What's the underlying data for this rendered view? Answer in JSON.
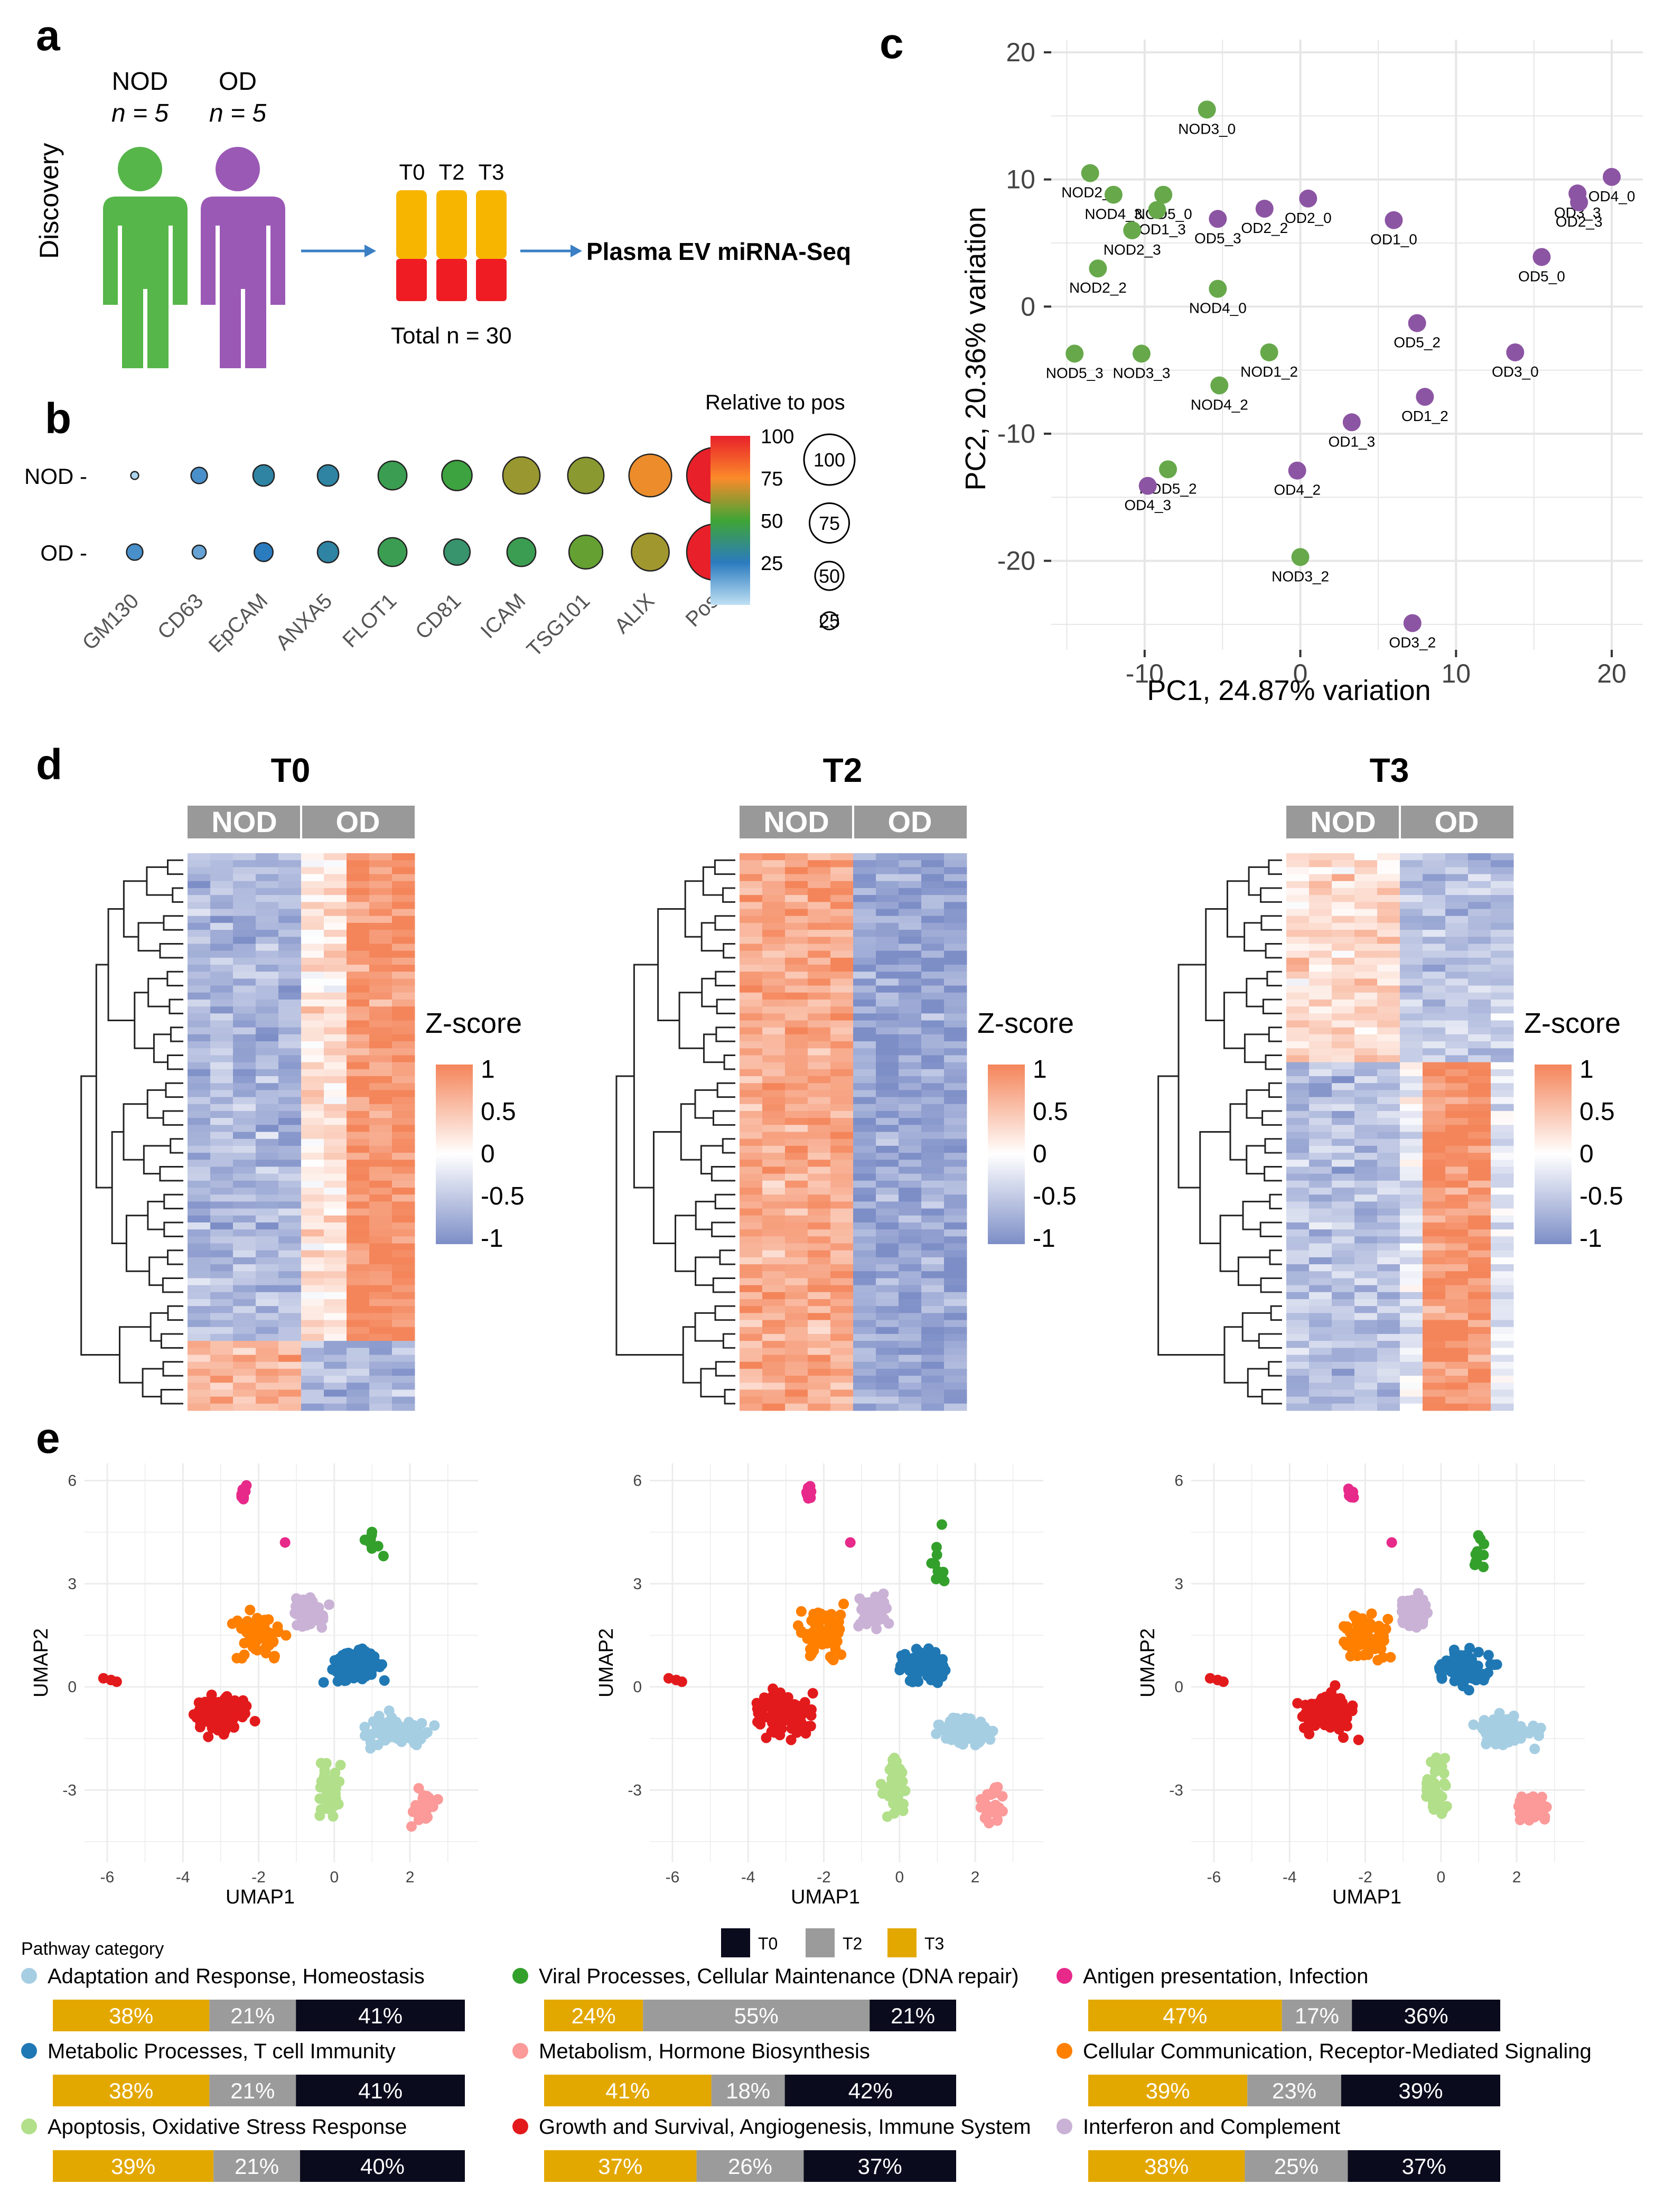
{
  "panel_labels": {
    "a": "a",
    "b": "b",
    "c": "c",
    "d": "d",
    "e": "e"
  },
  "panel_a": {
    "group_nod": "NOD",
    "n_nod": "n = 5",
    "group_od": "OD",
    "n_od": "n = 5",
    "side_label": "Discovery",
    "timepoints": [
      "T0",
      "T2",
      "T3"
    ],
    "total": "Total n = 30",
    "output": "Plasma EV miRNA-Seq",
    "colors": {
      "nod": "#56b649",
      "od": "#9b59b6",
      "tube_top": "#f7b500",
      "tube_bottom": "#ef1c24",
      "arrow": "#3a7fc4"
    }
  },
  "chart_data": [
    {
      "id": "panel_b",
      "type": "scatter",
      "title": "Relative to pos",
      "rows": [
        "NOD",
        "OD"
      ],
      "categories": [
        "GM130",
        "CD63",
        "EpCAM",
        "ANXA5",
        "FLOT1",
        "CD81",
        "ICAM",
        "TSG101",
        "ALIX",
        "Pos"
      ],
      "values": {
        "NOD": [
          3,
          20,
          30,
          30,
          45,
          48,
          62,
          60,
          73,
          100
        ],
        "OD": [
          20,
          15,
          25,
          30,
          45,
          40,
          45,
          55,
          63,
          100
        ]
      },
      "color_scale": {
        "min": 0,
        "max": 100,
        "ticks": [
          100,
          75,
          50,
          25
        ]
      },
      "size_legend": [
        100,
        75,
        50,
        25
      ]
    },
    {
      "id": "panel_c",
      "type": "scatter",
      "xlabel": "PC1, 24.87% variation",
      "ylabel": "PC2, 20.36% variation",
      "xlim": [
        -16,
        22
      ],
      "ylim": [
        -27,
        21
      ],
      "xticks": [
        -10,
        0,
        10,
        20
      ],
      "yticks": [
        20,
        10,
        0,
        -10,
        -20
      ],
      "x_tick_labels": [
        "-10",
        "0",
        "10",
        "20"
      ],
      "y_tick_labels": [
        "20",
        "10",
        "0",
        "-10",
        "-20"
      ],
      "series": [
        {
          "name": "NOD",
          "color": "#67a84b",
          "points": [
            {
              "label": "NOD3_0",
              "x": -6,
              "y": 15.5
            },
            {
              "label": "NOD2_0",
              "x": -13.5,
              "y": 10.5
            },
            {
              "label": "NOD4_3",
              "x": -12,
              "y": 8.8
            },
            {
              "label": "NOD5_0",
              "x": -8.8,
              "y": 8.8
            },
            {
              "label": "NOD1_3",
              "x": -9.2,
              "y": 7.6
            },
            {
              "label": "NOD2_3",
              "x": -10.8,
              "y": 6
            },
            {
              "label": "NOD2_2",
              "x": -13,
              "y": 3
            },
            {
              "label": "NOD4_0",
              "x": -5.3,
              "y": 1.4
            },
            {
              "label": "NOD5_3",
              "x": -14.5,
              "y": -3.7
            },
            {
              "label": "NOD3_3",
              "x": -10.2,
              "y": -3.7
            },
            {
              "label": "NOD1_2",
              "x": -2,
              "y": -3.6
            },
            {
              "label": "NOD4_2",
              "x": -5.2,
              "y": -6.2
            },
            {
              "label": "NOD5_2",
              "x": -8.5,
              "y": -12.8
            },
            {
              "label": "NOD3_2",
              "x": 0,
              "y": -19.7
            }
          ]
        },
        {
          "name": "OD",
          "color": "#8c55a3",
          "points": [
            {
              "label": "OD4_0",
              "x": 20,
              "y": 10.2
            },
            {
              "label": "OD3_3",
              "x": 17.8,
              "y": 8.9
            },
            {
              "label": "OD2_3",
              "x": 17.9,
              "y": 8.2
            },
            {
              "label": "OD2_0",
              "x": 0.5,
              "y": 8.5
            },
            {
              "label": "OD2_2",
              "x": -2.3,
              "y": 7.7
            },
            {
              "label": "OD5_3",
              "x": -5.3,
              "y": 6.9
            },
            {
              "label": "OD1_0",
              "x": 6,
              "y": 6.8
            },
            {
              "label": "OD5_0",
              "x": 15.5,
              "y": 3.9
            },
            {
              "label": "OD5_2",
              "x": 7.5,
              "y": -1.3
            },
            {
              "label": "OD3_0",
              "x": 13.8,
              "y": -3.6
            },
            {
              "label": "OD1_2",
              "x": 8,
              "y": -7.1
            },
            {
              "label": "OD1_3",
              "x": 3.3,
              "y": -9.1
            },
            {
              "label": "OD4_2",
              "x": -0.2,
              "y": -12.9
            },
            {
              "label": "OD4_3",
              "x": -9.8,
              "y": -14.1
            },
            {
              "label": "OD3_2",
              "x": 7.2,
              "y": -24.9
            }
          ]
        }
      ]
    },
    {
      "id": "panel_d",
      "type": "heatmap",
      "titles": [
        "T0",
        "T2",
        "T3"
      ],
      "column_groups": [
        "NOD",
        "OD"
      ],
      "legend_title": "Z-score",
      "legend_ticks": [
        "1",
        "0.5",
        "0",
        "-0.5",
        "-1"
      ]
    },
    {
      "id": "panel_e",
      "type": "scatter",
      "xlabel": "UMAP1",
      "ylabel": "UMAP2",
      "xlim": [
        -6.6,
        3.8
      ],
      "ylim": [
        -5.1,
        6.5
      ],
      "xticks": [
        -6,
        -4,
        -2,
        0,
        2
      ],
      "yticks": [
        6,
        3,
        0,
        -3
      ],
      "x_tick_labels": [
        "-6",
        "-4",
        "-2",
        "0",
        "2"
      ],
      "y_tick_labels": [
        "6",
        "3",
        "0",
        "-3"
      ],
      "clusters": [
        {
          "name": "Adaptation and Response, Homeostasis",
          "color": "#a6cee3",
          "center": [
            1.7,
            -1.3
          ],
          "spread": [
            1.0,
            0.55
          ],
          "n": 90
        },
        {
          "name": "Metabolic Processes, T cell Immunity",
          "color": "#1f78b4",
          "center": [
            0.6,
            0.6
          ],
          "spread": [
            0.9,
            0.65
          ],
          "n": 80
        },
        {
          "name": "Apoptosis, Oxidative Stress Response",
          "color": "#b2df8a",
          "center": [
            -0.1,
            -2.9
          ],
          "spread": [
            0.45,
            1.2
          ],
          "n": 40
        },
        {
          "name": "Viral Processes, Cellular Maintenance (DNA repair)",
          "color": "#33a02c",
          "center": [
            1.0,
            4.0
          ],
          "spread": [
            0.35,
            1.0
          ],
          "n": 10
        },
        {
          "name": "Metabolism, Hormone Biosynthesis",
          "color": "#fb9a99",
          "center": [
            2.4,
            -3.5
          ],
          "spread": [
            0.5,
            0.7
          ],
          "n": 35
        },
        {
          "name": "Growth and Survival, Angiogenesis, Immune System",
          "color": "#e31a1c",
          "center": [
            -3.0,
            -0.8
          ],
          "spread": [
            0.95,
            0.8
          ],
          "n": 110
        },
        {
          "name": "Antigen presentation, Infection",
          "color": "#e7298a",
          "center": [
            -2.4,
            5.6
          ],
          "spread": [
            0.12,
            0.35
          ],
          "n": 10
        },
        {
          "name": "Cellular Communication, Receptor-Mediated Signaling",
          "color": "#ff7f00",
          "center": [
            -2.0,
            1.5
          ],
          "spread": [
            0.8,
            0.9
          ],
          "n": 75
        },
        {
          "name": "Interferon and Complement",
          "color": "#cab2d6",
          "center": [
            -0.7,
            2.2
          ],
          "spread": [
            0.55,
            0.65
          ],
          "n": 60
        }
      ],
      "outliers": [
        {
          "color": "#e31a1c",
          "pts": [
            [
              -6.1,
              0.25
            ],
            [
              -5.9,
              0.2
            ],
            [
              -5.75,
              0.15
            ]
          ]
        },
        {
          "color": "#e7298a",
          "pts": [
            [
              -1.3,
              4.2
            ]
          ]
        }
      ]
    },
    {
      "id": "panel_e_bars",
      "type": "bar",
      "title": "Pathway category",
      "legend": [
        {
          "label": "T0",
          "color": "#0b0b1e"
        },
        {
          "label": "T2",
          "color": "#9b9b9b"
        },
        {
          "label": "T3",
          "color": "#e3a800"
        }
      ],
      "categories": [
        {
          "name": "Adaptation and Response, Homeostasis",
          "dot": "#a6cee3",
          "T3": 38,
          "T2": 21,
          "T0": 41
        },
        {
          "name": "Viral Processes, Cellular Maintenance (DNA repair)",
          "dot": "#33a02c",
          "T3": 24,
          "T2": 55,
          "T0": 21
        },
        {
          "name": "Antigen presentation, Infection",
          "dot": "#e7298a",
          "T3": 47,
          "T2": 17,
          "T0": 36
        },
        {
          "name": "Metabolic Processes, T cell Immunity",
          "dot": "#1f78b4",
          "T3": 38,
          "T2": 21,
          "T0": 41
        },
        {
          "name": "Metabolism, Hormone Biosynthesis",
          "dot": "#fb9a99",
          "T3": 41,
          "T2": 18,
          "T0": 42
        },
        {
          "name": "Cellular Communication, Receptor-Mediated Signaling",
          "dot": "#ff7f00",
          "T3": 39,
          "T2": 23,
          "T0": 39
        },
        {
          "name": "Apoptosis, Oxidative Stress Response",
          "dot": "#b2df8a",
          "T3": 39,
          "T2": 21,
          "T0": 40
        },
        {
          "name": "Growth and Survival, Angiogenesis, Immune System",
          "dot": "#e31a1c",
          "T3": 37,
          "T2": 26,
          "T0": 37
        },
        {
          "name": "Interferon and Complement",
          "dot": "#cab2d6",
          "T3": 38,
          "T2": 25,
          "T0": 37
        }
      ]
    }
  ]
}
